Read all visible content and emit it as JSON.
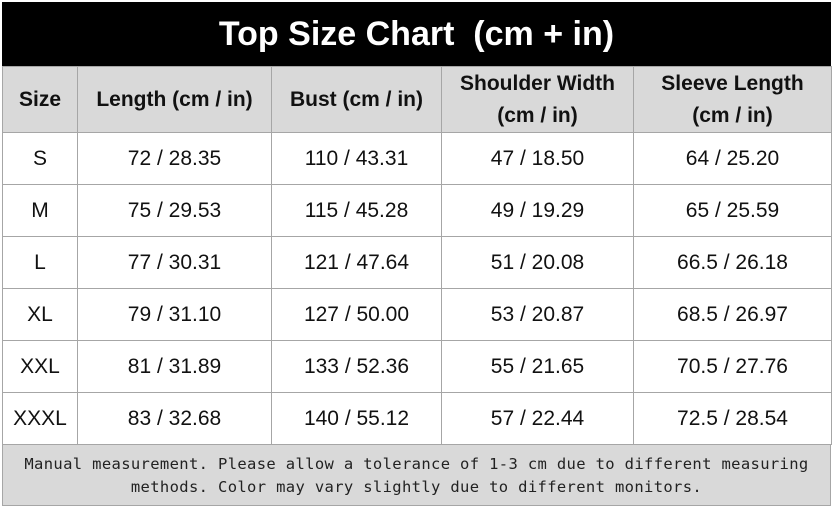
{
  "title": "Top Size Chart  (cm + in)",
  "table": {
    "header": [
      [
        "Size"
      ],
      [
        "Length (cm / in)"
      ],
      [
        "Bust (cm / in)"
      ],
      [
        "Shoulder Width",
        "(cm / in)"
      ],
      [
        "Sleeve Length",
        "(cm / in)"
      ]
    ],
    "rows": [
      [
        "S",
        "72 / 28.35",
        "110 / 43.31",
        "47 / 18.50",
        "64 / 25.20"
      ],
      [
        "M",
        "75 / 29.53",
        "115 / 45.28",
        "49 / 19.29",
        "65 / 25.59"
      ],
      [
        "L",
        "77 / 30.31",
        "121 / 47.64",
        "51 / 20.08",
        "66.5 / 26.18"
      ],
      [
        "XL",
        "79 / 31.10",
        "127 / 50.00",
        "53 / 20.87",
        "68.5 / 26.97"
      ],
      [
        "XXL",
        "81 / 31.89",
        "133 / 52.36",
        "55 / 21.65",
        "70.5 / 27.76"
      ],
      [
        "XXXL",
        "83 / 32.68",
        "140 / 55.12",
        "57 / 22.44",
        "72.5 / 28.54"
      ]
    ]
  },
  "note": [
    "Manual measurement. Please allow a tolerance of 1-3 cm due to different measuring",
    "methods. Color may vary slightly due to different monitors."
  ]
}
